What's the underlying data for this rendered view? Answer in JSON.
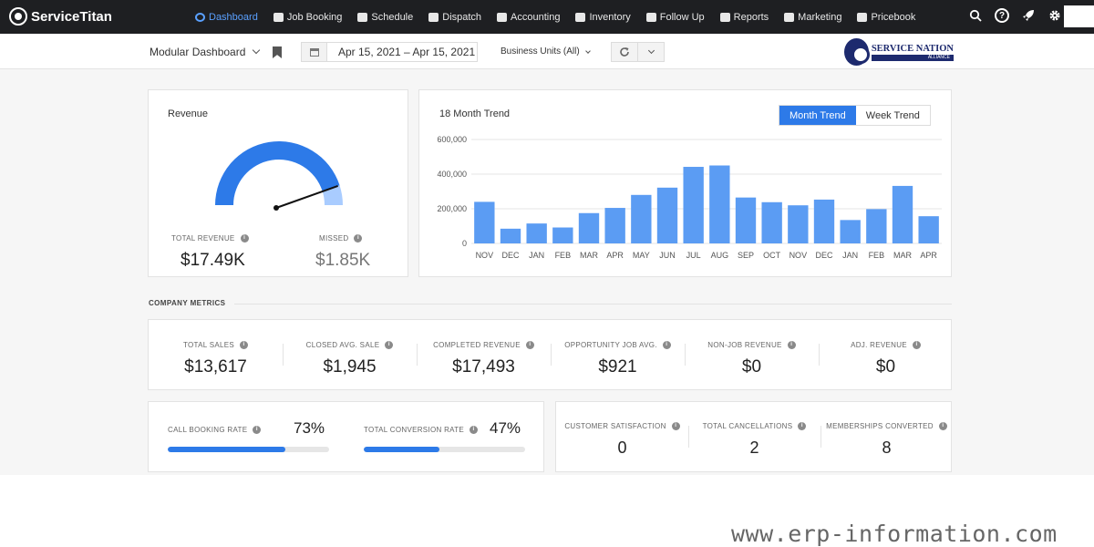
{
  "app": {
    "logo_text": "ServiceTitan"
  },
  "nav": {
    "items": [
      {
        "label": "Dashboard",
        "icon": "dashboard-icon",
        "active": true
      },
      {
        "label": "Job Booking",
        "icon": "job-booking-icon"
      },
      {
        "label": "Schedule",
        "icon": "calendar-icon"
      },
      {
        "label": "Dispatch",
        "icon": "truck-icon"
      },
      {
        "label": "Accounting",
        "icon": "accounting-icon"
      },
      {
        "label": "Inventory",
        "icon": "box-icon"
      },
      {
        "label": "Follow Up",
        "icon": "flag-icon"
      },
      {
        "label": "Reports",
        "icon": "reports-icon"
      },
      {
        "label": "Marketing",
        "icon": "megaphone-icon"
      },
      {
        "label": "Pricebook",
        "icon": "book-icon"
      }
    ],
    "right_icons": [
      "search-icon",
      "help-icon",
      "rocket-icon",
      "gear-icon"
    ],
    "help_glyph": "?"
  },
  "subheader": {
    "dashboard_select": "Modular Dashboard",
    "date_range": "Apr 15, 2021 – Apr 15, 2021",
    "business_units": "Business Units (All)",
    "brand_name": "SERVICE NATION",
    "brand_sub": "ALLIANCE"
  },
  "revenue_card": {
    "title": "Revenue",
    "total_label": "TOTAL REVENUE",
    "total_value": "$17.49K",
    "missed_label": "MISSED",
    "missed_value": "$1.85K",
    "gauge_fraction": 0.9,
    "colors": {
      "filled": "#2d7ae8",
      "missed": "#a9ccff"
    }
  },
  "trend_card": {
    "title": "18 Month Trend",
    "toggle": {
      "month": "Month Trend",
      "week": "Week Trend",
      "selected": "month"
    }
  },
  "chart_data": {
    "type": "bar",
    "title": "18 Month Trend",
    "categories": [
      "NOV",
      "DEC",
      "JAN",
      "FEB",
      "MAR",
      "APR",
      "MAY",
      "JUN",
      "JUL",
      "AUG",
      "SEP",
      "OCT",
      "NOV",
      "DEC",
      "JAN",
      "FEB",
      "MAR",
      "APR"
    ],
    "values": [
      240000,
      85000,
      115000,
      92000,
      175000,
      205000,
      280000,
      322000,
      442000,
      450000,
      265000,
      238000,
      220000,
      253000,
      135000,
      198000,
      332000,
      157000
    ],
    "yticks": [
      0,
      200000,
      400000,
      600000
    ],
    "ytick_labels": [
      "0",
      "200,000",
      "400,000",
      "600,000"
    ],
    "ylim": [
      0,
      600000
    ],
    "grid": true,
    "color": "#5b9cf3"
  },
  "company_metrics": {
    "title": "COMPANY METRICS",
    "items": [
      {
        "label": "TOTAL SALES",
        "value": "$13,617"
      },
      {
        "label": "CLOSED AVG. SALE",
        "value": "$1,945"
      },
      {
        "label": "COMPLETED REVENUE",
        "value": "$17,493"
      },
      {
        "label": "OPPORTUNITY JOB AVG.",
        "value": "$921"
      },
      {
        "label": "NON-JOB REVENUE",
        "value": "$0"
      },
      {
        "label": "ADJ. REVENUE",
        "value": "$0"
      }
    ]
  },
  "rates": {
    "call_booking": {
      "label": "CALL BOOKING RATE",
      "value": "73%",
      "fraction": 0.73
    },
    "total_conversion": {
      "label": "TOTAL CONVERSION RATE",
      "value": "47%",
      "fraction": 0.47
    }
  },
  "counts": [
    {
      "label": "CUSTOMER SATISFACTION",
      "value": "0"
    },
    {
      "label": "TOTAL CANCELLATIONS",
      "value": "2"
    },
    {
      "label": "MEMBERSHIPS CONVERTED",
      "value": "8"
    }
  ],
  "watermark": "www.erp-information.com"
}
